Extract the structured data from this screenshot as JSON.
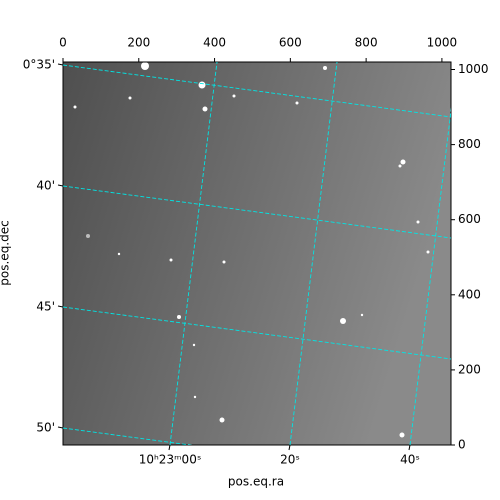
{
  "chart_data": {
    "type": "image",
    "xlabel": "pos.eq.ra",
    "ylabel": "pos.eq.dec",
    "xlim": [
      0,
      1024
    ],
    "ylim": [
      0,
      1020
    ],
    "xticks": [
      0,
      200,
      400,
      600,
      800,
      1000
    ],
    "yticks": [
      0,
      200,
      400,
      600,
      800,
      1000
    ],
    "ra_ticks": [
      {
        "value": 0,
        "label": "10ʰ23ᵐ00ˢ"
      },
      {
        "value": 20,
        "label": "20ˢ"
      },
      {
        "value": 40,
        "label": "40ˢ"
      }
    ],
    "dec_ticks": [
      {
        "value": 35,
        "label": "0°35'"
      },
      {
        "value": 40,
        "label": "40'"
      },
      {
        "value": 45,
        "label": "45'"
      },
      {
        "value": 50,
        "label": "50'"
      }
    ],
    "grid_color": "#00e5e5"
  }
}
